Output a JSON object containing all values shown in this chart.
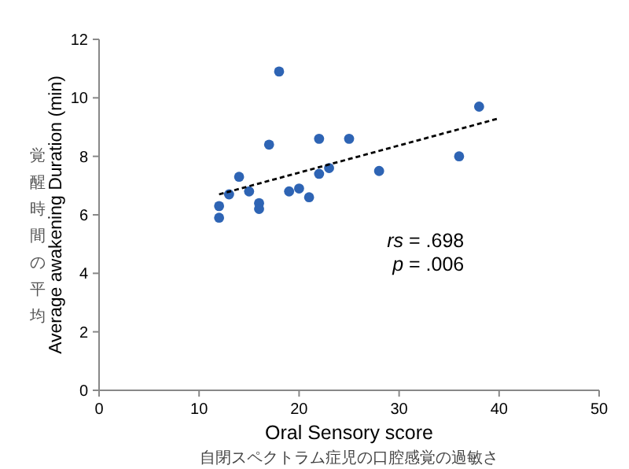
{
  "chart_data": {
    "type": "scatter",
    "xlabel": "Oral Sensory score",
    "ylabel": "Average awakening Duration (min)",
    "xlim": [
      0,
      50
    ],
    "ylim": [
      0,
      12
    ],
    "xticks": [
      0,
      10,
      20,
      30,
      40,
      50
    ],
    "yticks": [
      0,
      2,
      4,
      6,
      8,
      10,
      12
    ],
    "marker": "circle",
    "grid": false,
    "annotations": [
      "*rs* = .698",
      "*p* = .006",
      "覚醒時間の平均",
      "自閉スペクトラム症児の口腔感覚の過敏さ"
    ],
    "series": [
      {
        "color": "#2e64b4",
        "x": [
          12,
          12,
          13,
          14,
          15,
          16,
          16,
          17,
          18,
          19,
          20,
          21,
          22,
          22,
          23,
          25,
          28,
          36,
          38
        ],
        "values": [
          6.3,
          5.9,
          6.7,
          7.3,
          6.8,
          6.4,
          6.2,
          8.4,
          10.9,
          6.8,
          6.9,
          6.6,
          8.6,
          7.4,
          7.6,
          8.6,
          7.5,
          8.0,
          9.7
        ]
      },
      {
        "type": "line",
        "color": "#000000",
        "line_style": "dashed",
        "marker": "none",
        "x": [
          12,
          40
        ],
        "values": [
          6.7,
          9.3
        ]
      }
    ]
  }
}
